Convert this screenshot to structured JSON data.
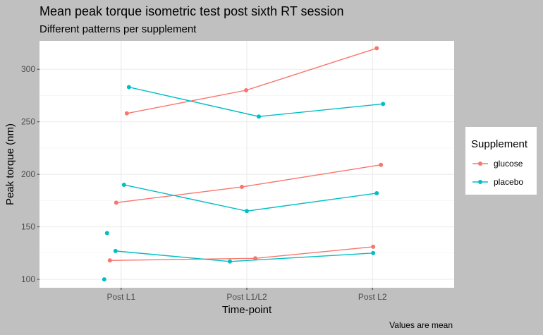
{
  "chart_data": {
    "type": "line",
    "title": "Mean peak torque isometric test post sixth RT session",
    "subtitle": "Different patterns per supplement",
    "xlabel": "Time-point",
    "ylabel": "Peak torque (nm)",
    "caption": "Values are mean",
    "categories": [
      "Post L1",
      "Post L1/L2",
      "Post L2"
    ],
    "yticks": [
      100,
      150,
      200,
      250,
      300
    ],
    "ylim": [
      92,
      327
    ],
    "grid": true,
    "legend": {
      "title": "Supplement",
      "placement": "right",
      "entries": [
        {
          "label": "glucose",
          "color": "#F8766D"
        },
        {
          "label": "placebo",
          "color": "#00BFC4"
        }
      ]
    },
    "series": [
      {
        "group": "glucose",
        "color": "#F8766D",
        "points": [
          {
            "x": "Post L1",
            "y": 258
          },
          {
            "x": "Post L1/L2",
            "y": 280
          },
          {
            "x": "Post L2",
            "y": 320
          }
        ]
      },
      {
        "group": "glucose",
        "color": "#F8766D",
        "points": [
          {
            "x": "Post L1",
            "y": 173
          },
          {
            "x": "Post L1/L2",
            "y": 188
          },
          {
            "x": "Post L2",
            "y": 209
          }
        ]
      },
      {
        "group": "glucose",
        "color": "#F8766D",
        "points": [
          {
            "x": "Post L1",
            "y": 118
          },
          {
            "x": "Post L1/L2",
            "y": 120
          },
          {
            "x": "Post L2",
            "y": 131
          }
        ]
      },
      {
        "group": "placebo",
        "color": "#00BFC4",
        "points": [
          {
            "x": "Post L1",
            "y": 283
          },
          {
            "x": "Post L1/L2",
            "y": 255
          },
          {
            "x": "Post L2",
            "y": 267
          }
        ]
      },
      {
        "group": "placebo",
        "color": "#00BFC4",
        "points": [
          {
            "x": "Post L1",
            "y": 190
          },
          {
            "x": "Post L1/L2",
            "y": 165
          },
          {
            "x": "Post L2",
            "y": 182
          }
        ]
      },
      {
        "group": "placebo",
        "color": "#00BFC4",
        "points": [
          {
            "x": "Post L1",
            "y": 127
          },
          {
            "x": "Post L1/L2",
            "y": 117
          },
          {
            "x": "Post L2",
            "y": 125
          }
        ]
      }
    ],
    "unconnected_points": [
      {
        "group": "placebo",
        "color": "#00BFC4",
        "x": "Post L1",
        "y": 144
      },
      {
        "group": "placebo",
        "color": "#00BFC4",
        "x": "Post L1",
        "y": 100
      }
    ]
  }
}
